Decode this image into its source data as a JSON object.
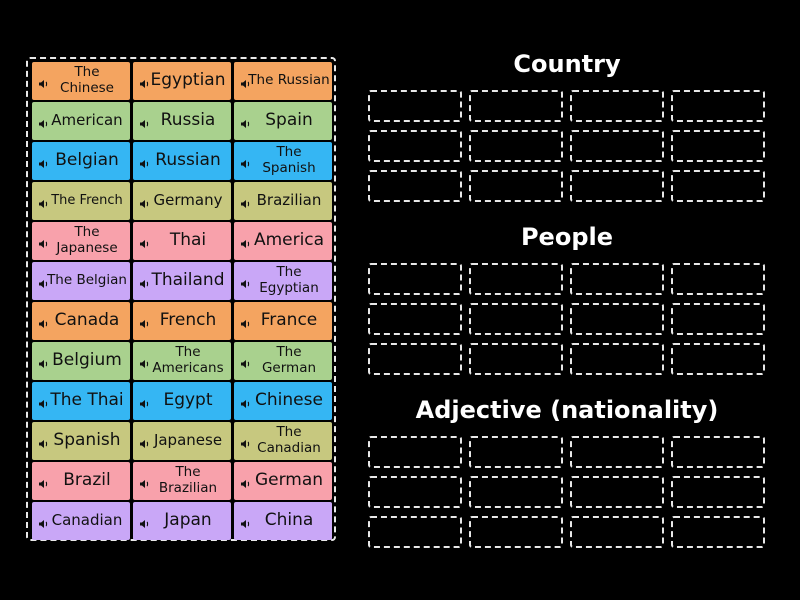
{
  "tile_colors": {
    "orange": "#f4a460",
    "green": "#a9d18e",
    "blue": "#35b6f3",
    "olive": "#c7c87f",
    "pink": "#f8a1ab",
    "purple": "#c9a7f7"
  },
  "tiles": [
    {
      "label": "The Chinese",
      "color": "#f4a460",
      "size": "t-two"
    },
    {
      "label": "Egyptian",
      "color": "#f4a460",
      "size": "t-lg"
    },
    {
      "label": "The Russian",
      "color": "#f4a460",
      "size": "t-two"
    },
    {
      "label": "American",
      "color": "#a9d18e",
      "size": "t-md"
    },
    {
      "label": "Russia",
      "color": "#a9d18e",
      "size": "t-lg"
    },
    {
      "label": "Spain",
      "color": "#a9d18e",
      "size": "t-lg"
    },
    {
      "label": "Belgian",
      "color": "#35b6f3",
      "size": "t-lg"
    },
    {
      "label": "Russian",
      "color": "#35b6f3",
      "size": "t-lg"
    },
    {
      "label": "The Spanish",
      "color": "#35b6f3",
      "size": "t-two"
    },
    {
      "label": "The French",
      "color": "#c7c87f",
      "size": "t-sm2"
    },
    {
      "label": "Germany",
      "color": "#c7c87f",
      "size": "t-md"
    },
    {
      "label": "Brazilian",
      "color": "#c7c87f",
      "size": "t-md"
    },
    {
      "label": "The Japanese",
      "color": "#f8a1ab",
      "size": "t-two"
    },
    {
      "label": "Thai",
      "color": "#f8a1ab",
      "size": "t-lg"
    },
    {
      "label": "America",
      "color": "#f8a1ab",
      "size": "t-lg"
    },
    {
      "label": "The Belgian",
      "color": "#c9a7f7",
      "size": "t-two"
    },
    {
      "label": "Thailand",
      "color": "#c9a7f7",
      "size": "t-lg"
    },
    {
      "label": "The Egyptian",
      "color": "#c9a7f7",
      "size": "t-two"
    },
    {
      "label": "Canada",
      "color": "#f4a460",
      "size": "t-lg"
    },
    {
      "label": "French",
      "color": "#f4a460",
      "size": "t-lg"
    },
    {
      "label": "France",
      "color": "#f4a460",
      "size": "t-lg"
    },
    {
      "label": "Belgium",
      "color": "#a9d18e",
      "size": "t-lg"
    },
    {
      "label": "The Americans",
      "color": "#a9d18e",
      "size": "t-two"
    },
    {
      "label": "The German",
      "color": "#a9d18e",
      "size": "t-two"
    },
    {
      "label": "The Thai",
      "color": "#35b6f3",
      "size": "t-lg"
    },
    {
      "label": "Egypt",
      "color": "#35b6f3",
      "size": "t-lg"
    },
    {
      "label": "Chinese",
      "color": "#35b6f3",
      "size": "t-lg"
    },
    {
      "label": "Spanish",
      "color": "#c7c87f",
      "size": "t-lg"
    },
    {
      "label": "Japanese",
      "color": "#c7c87f",
      "size": "t-md"
    },
    {
      "label": "The Canadian",
      "color": "#c7c87f",
      "size": "t-two"
    },
    {
      "label": "Brazil",
      "color": "#f8a1ab",
      "size": "t-lg"
    },
    {
      "label": "The Brazilian",
      "color": "#f8a1ab",
      "size": "t-two"
    },
    {
      "label": "German",
      "color": "#f8a1ab",
      "size": "t-lg"
    },
    {
      "label": "Canadian",
      "color": "#c9a7f7",
      "size": "t-md"
    },
    {
      "label": "Japan",
      "color": "#c9a7f7",
      "size": "t-lg"
    },
    {
      "label": "China",
      "color": "#c9a7f7",
      "size": "t-lg"
    }
  ],
  "sections": {
    "country": {
      "title": "Country"
    },
    "people": {
      "title": "People"
    },
    "adjective": {
      "title": "Adjective (nationality)"
    }
  },
  "icons": {
    "tile_audio": "speaker-icon"
  }
}
